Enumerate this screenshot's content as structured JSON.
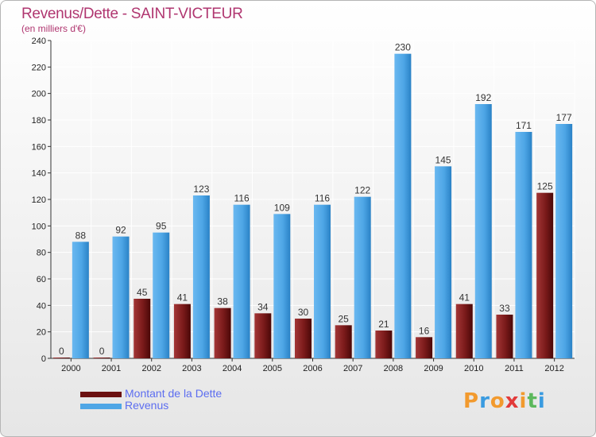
{
  "chart_data": {
    "type": "bar",
    "title": "Revenus/Dette - SAINT-VICTEUR",
    "subtitle": "(en milliers d'€)",
    "categories": [
      "2000",
      "2001",
      "2002",
      "2003",
      "2004",
      "2005",
      "2006",
      "2007",
      "2008",
      "2009",
      "2010",
      "2011",
      "2012"
    ],
    "series": [
      {
        "name": "Montant de la Dette",
        "color": "#7a1a1a",
        "values": [
          0,
          0,
          45,
          41,
          38,
          34,
          30,
          25,
          21,
          16,
          41,
          33,
          125
        ]
      },
      {
        "name": "Revenus",
        "color": "#4ea6e6",
        "values": [
          88,
          92,
          95,
          123,
          116,
          109,
          116,
          122,
          230,
          145,
          192,
          171,
          177
        ]
      }
    ],
    "ylim": [
      0,
      240
    ],
    "yticks": [
      0,
      20,
      40,
      60,
      80,
      100,
      120,
      140,
      160,
      180,
      200,
      220,
      240
    ],
    "grid": true,
    "legend": "bottom-left"
  },
  "branding": {
    "logo_text": "Proxiti",
    "logo_colors": [
      "#f29a2e",
      "#3a9be0",
      "#f29a2e",
      "#e23a3a",
      "#f29a2e",
      "#5cb85c",
      "#3a9be0"
    ]
  }
}
